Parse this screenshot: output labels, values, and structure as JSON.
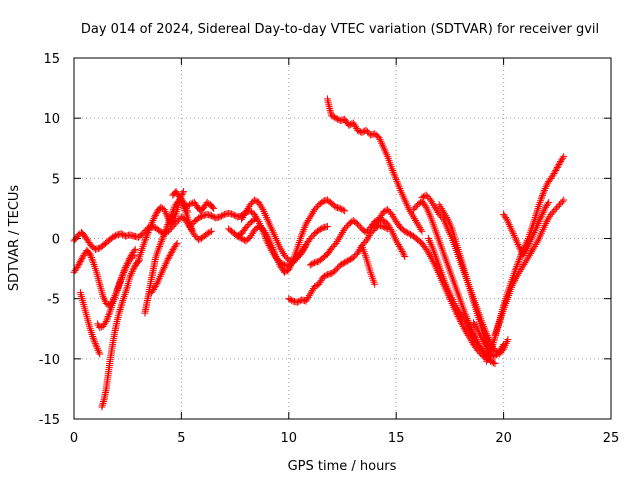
{
  "chart_data": {
    "type": "scatter",
    "title": "Day 014 of 2024, Sidereal Day-to-day VTEC variation (SDTVAR) for receiver gvil",
    "xlabel": "GPS time / hours",
    "ylabel": "SDTVAR / TECUs",
    "xlim": [
      0,
      25
    ],
    "ylim": [
      -15,
      15
    ],
    "xticks": [
      0,
      5,
      10,
      15,
      20,
      25
    ],
    "yticks": [
      -15,
      -10,
      -5,
      0,
      5,
      10,
      15
    ],
    "grid": "dotted",
    "marker": "plus",
    "color": "#ff0000",
    "series": [
      {
        "x": [
          0.0,
          0.2,
          0.35,
          0.5,
          0.65,
          0.8,
          1.0,
          1.2,
          1.4,
          1.6,
          1.8,
          2.0,
          2.2,
          2.4,
          2.6,
          2.8
        ],
        "y": [
          -0.2,
          0.3,
          0.5,
          0.2,
          -0.2,
          -0.6,
          -0.9,
          -0.8,
          -0.5,
          -0.2,
          0.1,
          0.3,
          0.4,
          0.2,
          0.3,
          0.2
        ]
      },
      {
        "x": [
          0.0,
          0.15,
          0.3,
          0.45,
          0.6,
          0.75,
          0.9,
          1.05,
          1.2,
          1.35,
          1.5,
          1.65,
          1.8,
          1.95,
          2.1,
          2.25,
          2.4,
          2.6,
          2.8
        ],
        "y": [
          -2.8,
          -2.4,
          -1.9,
          -1.4,
          -1.0,
          -1.3,
          -2.0,
          -2.8,
          -3.8,
          -4.8,
          -5.4,
          -5.6,
          -5.2,
          -4.6,
          -3.9,
          -3.1,
          -2.4,
          -1.8,
          -1.4
        ]
      },
      {
        "x": [
          0.3,
          0.45,
          0.6,
          0.75,
          0.9,
          1.05,
          1.2
        ],
        "y": [
          -4.5,
          -5.5,
          -6.5,
          -7.5,
          -8.3,
          -9.0,
          -9.6
        ]
      },
      {
        "x": [
          1.3,
          1.4,
          1.5,
          1.6,
          1.7,
          1.8,
          1.9,
          2.0,
          2.1,
          2.2,
          2.3,
          2.4,
          2.5,
          2.6,
          2.75,
          2.9,
          3.05
        ],
        "y": [
          -14.0,
          -13.4,
          -12.5,
          -11.2,
          -9.9,
          -8.8,
          -7.8,
          -6.9,
          -6.2,
          -5.6,
          -5.0,
          -4.5,
          -3.9,
          -3.2,
          -2.6,
          -2.1,
          -1.8
        ]
      },
      {
        "x": [
          1.1,
          1.2,
          1.35,
          1.5,
          1.65,
          1.8,
          1.95,
          2.1,
          2.25,
          2.4,
          2.55,
          2.7,
          2.85
        ],
        "y": [
          -7.1,
          -7.4,
          -7.3,
          -6.9,
          -6.2,
          -5.4,
          -4.6,
          -3.8,
          -3.1,
          -2.4,
          -1.8,
          -1.3,
          -0.9
        ]
      },
      {
        "x": [
          3.3,
          3.4,
          3.5,
          3.6,
          3.7,
          3.8,
          3.95,
          4.1,
          4.25,
          4.4,
          4.55,
          4.7,
          4.85,
          5.0,
          5.15,
          5.3
        ],
        "y": [
          -6.2,
          -5.3,
          -4.4,
          -3.4,
          -2.5,
          -1.6,
          -0.8,
          -0.1,
          0.6,
          1.3,
          2.0,
          2.7,
          3.1,
          3.3,
          2.8,
          2.2
        ]
      },
      {
        "x": [
          3.0,
          3.15,
          3.3,
          3.45,
          3.6,
          3.75,
          3.9,
          4.05,
          4.2,
          4.35,
          4.5,
          4.65,
          4.8,
          4.95,
          5.1
        ],
        "y": [
          -1.8,
          -1.0,
          -0.2,
          0.5,
          1.2,
          1.8,
          2.3,
          2.6,
          2.4,
          1.8,
          1.2,
          1.5,
          2.4,
          3.4,
          3.9
        ]
      },
      {
        "x": [
          3.6,
          3.75,
          3.9,
          4.05,
          4.2,
          4.35,
          4.5,
          4.65,
          4.8
        ],
        "y": [
          -4.5,
          -4.1,
          -3.6,
          -3.0,
          -2.4,
          -1.8,
          -1.3,
          -0.8,
          -0.4
        ]
      },
      {
        "x": [
          2.8,
          3.0,
          3.2,
          3.4,
          3.6,
          3.8,
          4.0,
          4.2,
          4.4,
          4.6,
          4.8,
          5.0,
          5.2,
          5.4,
          5.6,
          5.8,
          6.0,
          6.2,
          6.4
        ],
        "y": [
          0.2,
          0.1,
          0.4,
          0.8,
          1.0,
          0.9,
          0.6,
          0.4,
          0.6,
          1.0,
          1.4,
          1.8,
          1.5,
          0.9,
          0.3,
          -0.1,
          0.1,
          0.4,
          0.6
        ]
      },
      {
        "x": [
          5.0,
          5.15,
          5.3,
          5.45,
          5.6,
          5.75,
          5.9,
          6.05,
          6.2,
          6.35,
          6.5
        ],
        "y": [
          3.0,
          2.8,
          2.7,
          2.9,
          3.0,
          2.6,
          2.3,
          2.6,
          3.0,
          2.8,
          2.5
        ]
      },
      {
        "x": [
          4.6,
          4.75,
          4.9,
          5.05,
          5.2,
          5.35,
          5.5
        ],
        "y": [
          3.6,
          3.9,
          3.5,
          2.9,
          2.2,
          1.4,
          0.7
        ]
      },
      {
        "x": [
          5.4,
          5.6,
          5.8,
          6.0,
          6.2,
          6.4,
          6.6,
          6.8,
          7.0,
          7.2,
          7.4,
          7.6,
          7.8,
          8.0,
          8.2,
          8.4,
          8.6,
          8.8,
          9.0,
          9.2,
          9.4,
          9.6,
          9.8,
          10.0,
          10.2,
          10.4,
          10.6,
          10.8,
          11.0,
          11.2,
          11.4,
          11.6,
          11.8
        ],
        "y": [
          1.0,
          1.4,
          1.7,
          1.9,
          2.0,
          1.9,
          1.7,
          1.8,
          2.0,
          2.1,
          2.0,
          1.8,
          1.9,
          2.2,
          2.3,
          2.0,
          1.4,
          0.6,
          -0.3,
          -1.0,
          -1.6,
          -2.0,
          -2.2,
          -2.3,
          -2.0,
          -1.6,
          -1.1,
          -0.5,
          0.0,
          0.4,
          0.7,
          0.9,
          1.0
        ]
      },
      {
        "x": [
          7.8,
          8.0,
          8.2,
          8.4,
          8.6,
          8.8,
          9.0,
          9.2,
          9.4,
          9.6,
          9.8,
          10.0,
          10.2,
          10.4,
          10.6,
          10.8
        ],
        "y": [
          1.6,
          2.2,
          2.8,
          3.2,
          3.0,
          2.4,
          1.6,
          0.8,
          0.0,
          -0.8,
          -1.4,
          -1.8,
          -1.9,
          -1.6,
          -1.2,
          -0.6
        ]
      },
      {
        "x": [
          7.6,
          7.8,
          8.0,
          8.2,
          8.4,
          8.6,
          8.8,
          9.0,
          9.2,
          9.4,
          9.6,
          9.8,
          10.0,
          10.2,
          10.4,
          10.6,
          10.8,
          11.0,
          11.2,
          11.4,
          11.6,
          11.8,
          12.0,
          12.2,
          12.4,
          12.6
        ],
        "y": [
          0.2,
          0.0,
          -0.2,
          0.1,
          0.7,
          1.0,
          0.8,
          0.2,
          -0.6,
          -1.5,
          -2.3,
          -2.8,
          -2.6,
          -1.8,
          -0.8,
          0.3,
          1.2,
          1.8,
          2.4,
          2.8,
          3.1,
          3.2,
          2.9,
          2.6,
          2.5,
          2.3
        ]
      },
      {
        "x": [
          7.2,
          7.4,
          7.6,
          7.8,
          8.0,
          8.2,
          8.4
        ],
        "y": [
          0.8,
          0.5,
          0.2,
          0.4,
          0.9,
          1.3,
          1.6
        ]
      },
      {
        "x": [
          11.0,
          11.2,
          11.4,
          11.6,
          11.8,
          12.0,
          12.2,
          12.4,
          12.6,
          12.8,
          13.0,
          13.2,
          13.4,
          13.6,
          13.8,
          14.0,
          14.2,
          14.4,
          14.6,
          14.8,
          15.0,
          15.2,
          15.4
        ],
        "y": [
          -2.2,
          -2.0,
          -1.9,
          -1.6,
          -1.3,
          -0.8,
          -0.4,
          0.2,
          0.8,
          1.2,
          1.5,
          1.2,
          0.8,
          0.5,
          0.9,
          1.4,
          1.6,
          1.5,
          1.2,
          0.6,
          -0.2,
          -0.8,
          -1.5
        ]
      },
      {
        "x": [
          10.0,
          10.2,
          10.4,
          10.6,
          10.8,
          11.0,
          11.2,
          11.4,
          11.6,
          11.8,
          12.0,
          12.2,
          12.4,
          12.6,
          12.8,
          13.0,
          13.2,
          13.4,
          13.6,
          13.8,
          14.0,
          14.2,
          14.4,
          14.6
        ],
        "y": [
          -5.0,
          -5.2,
          -5.3,
          -5.1,
          -5.2,
          -4.6,
          -4.0,
          -3.8,
          -3.2,
          -3.0,
          -2.9,
          -2.6,
          -2.2,
          -2.0,
          -1.8,
          -1.6,
          -1.2,
          -0.6,
          -0.2,
          0.4,
          0.8,
          1.1,
          1.0,
          0.8
        ]
      },
      {
        "x": [
          13.4,
          13.6,
          13.8,
          14.0
        ],
        "y": [
          -0.6,
          -1.6,
          -2.8,
          -3.8
        ]
      },
      {
        "x": [
          11.8,
          11.9,
          12.0,
          12.2,
          12.4,
          12.6,
          12.8,
          13.0,
          13.2,
          13.4,
          13.6,
          13.8,
          14.0,
          14.2,
          14.4,
          14.6,
          14.8,
          15.0,
          15.2,
          15.4,
          15.6,
          15.8,
          16.0,
          16.2
        ],
        "y": [
          11.6,
          10.8,
          10.2,
          10.0,
          9.8,
          9.9,
          9.4,
          9.6,
          9.0,
          8.8,
          9.0,
          8.6,
          8.7,
          8.4,
          7.6,
          6.8,
          5.8,
          4.9,
          4.0,
          3.2,
          2.4,
          1.8,
          1.2,
          0.6
        ]
      },
      {
        "x": [
          14.0,
          14.2,
          14.4,
          14.6,
          14.8,
          15.0,
          15.2,
          15.4,
          15.6,
          15.8,
          16.0,
          16.2,
          16.4,
          16.6,
          16.8,
          17.0,
          17.2,
          17.4,
          17.6,
          17.8,
          18.0,
          18.2,
          18.4,
          18.6,
          18.8,
          19.0,
          19.2,
          19.4
        ],
        "y": [
          1.0,
          1.6,
          2.2,
          2.4,
          2.0,
          1.4,
          0.9,
          0.6,
          0.4,
          0.2,
          -0.1,
          -0.4,
          -0.9,
          -1.5,
          -2.2,
          -3.0,
          -3.8,
          -4.6,
          -5.4,
          -6.2,
          -6.9,
          -7.6,
          -8.2,
          -8.8,
          -9.3,
          -9.7,
          -10.0,
          -10.1
        ]
      },
      {
        "x": [
          15.8,
          16.0,
          16.2,
          16.4,
          16.6,
          16.8,
          17.0,
          17.2,
          17.4,
          17.6,
          17.8,
          18.0,
          18.2,
          18.4,
          18.6,
          18.8,
          19.0,
          19.2,
          19.4,
          19.6
        ],
        "y": [
          2.4,
          2.8,
          3.1,
          2.6,
          1.8,
          0.8,
          -0.2,
          -1.2,
          -2.2,
          -3.2,
          -4.2,
          -5.2,
          -6.2,
          -7.1,
          -8.0,
          -8.7,
          -9.3,
          -9.8,
          -10.2,
          -10.4
        ]
      },
      {
        "x": [
          16.2,
          16.4,
          16.6,
          16.8,
          17.0,
          17.2,
          17.4,
          17.6,
          17.8,
          18.0,
          18.2,
          18.4,
          18.6,
          18.8,
          19.0,
          19.2,
          19.4,
          19.6,
          19.8,
          20.0,
          20.2
        ],
        "y": [
          3.4,
          3.6,
          3.2,
          2.6,
          2.0,
          1.6,
          0.8,
          0.0,
          -1.0,
          -2.0,
          -3.0,
          -4.0,
          -5.0,
          -6.0,
          -7.0,
          -7.9,
          -8.7,
          -9.3,
          -9.6,
          -9.2,
          -8.4
        ]
      },
      {
        "x": [
          16.5,
          16.7,
          16.9,
          17.1,
          17.3,
          17.5,
          17.7,
          17.9,
          18.1,
          18.3,
          18.5,
          18.7,
          18.9,
          19.1,
          19.3
        ],
        "y": [
          0.0,
          -0.8,
          -1.8,
          -2.8,
          -3.8,
          -4.6,
          -5.4,
          -6.0,
          -6.6,
          -7.2,
          -7.8,
          -8.4,
          -9.0,
          -9.4,
          -9.8
        ]
      },
      {
        "x": [
          17.0,
          17.2,
          17.4,
          17.6,
          17.8,
          18.0,
          18.2,
          18.4,
          18.6,
          18.8,
          19.0,
          19.2,
          19.4
        ],
        "y": [
          2.8,
          2.2,
          1.6,
          0.8,
          -0.4,
          -1.6,
          -2.8,
          -4.0,
          -5.2,
          -6.4,
          -7.6,
          -8.6,
          -9.4
        ]
      },
      {
        "x": [
          19.2,
          19.35,
          19.5,
          19.65,
          19.8,
          19.95,
          20.1,
          20.25,
          20.4,
          20.55,
          20.7,
          20.85,
          21.0,
          21.15,
          21.3,
          21.45,
          21.6,
          21.75,
          21.9,
          22.05,
          22.2,
          22.35,
          22.5,
          22.65,
          22.8
        ],
        "y": [
          -10.2,
          -9.6,
          -8.8,
          -7.9,
          -6.9,
          -5.9,
          -5.0,
          -4.2,
          -3.4,
          -2.6,
          -1.9,
          -1.2,
          -0.6,
          0.0,
          0.8,
          1.6,
          2.5,
          3.3,
          4.0,
          4.6,
          5.0,
          5.4,
          5.9,
          6.4,
          6.8
        ]
      },
      {
        "x": [
          19.6,
          19.8,
          20.0,
          20.2,
          20.4,
          20.6,
          20.8,
          21.0,
          21.2,
          21.4,
          21.6,
          21.8,
          22.0,
          22.2,
          22.4,
          22.6,
          22.8
        ],
        "y": [
          -8.0,
          -7.0,
          -5.9,
          -4.9,
          -3.9,
          -3.2,
          -2.6,
          -2.0,
          -1.4,
          -0.8,
          -0.2,
          0.6,
          1.4,
          2.0,
          2.4,
          2.8,
          3.2
        ]
      },
      {
        "x": [
          20.0,
          20.15,
          20.3,
          20.45,
          20.6,
          20.75,
          20.9,
          21.05,
          21.2,
          21.35,
          21.5,
          21.65,
          21.8,
          21.95,
          22.1
        ],
        "y": [
          2.0,
          1.6,
          1.0,
          0.4,
          -0.2,
          -0.8,
          -1.4,
          -1.0,
          -0.4,
          0.2,
          0.8,
          1.4,
          2.0,
          2.6,
          3.0
        ]
      },
      {
        "x": [
          18.6,
          18.8,
          19.0,
          19.2,
          19.4,
          19.6,
          19.8,
          20.0
        ],
        "y": [
          -7.0,
          -7.6,
          -8.4,
          -9.0,
          -9.6,
          -9.8,
          -9.4,
          -8.8
        ]
      }
    ]
  }
}
